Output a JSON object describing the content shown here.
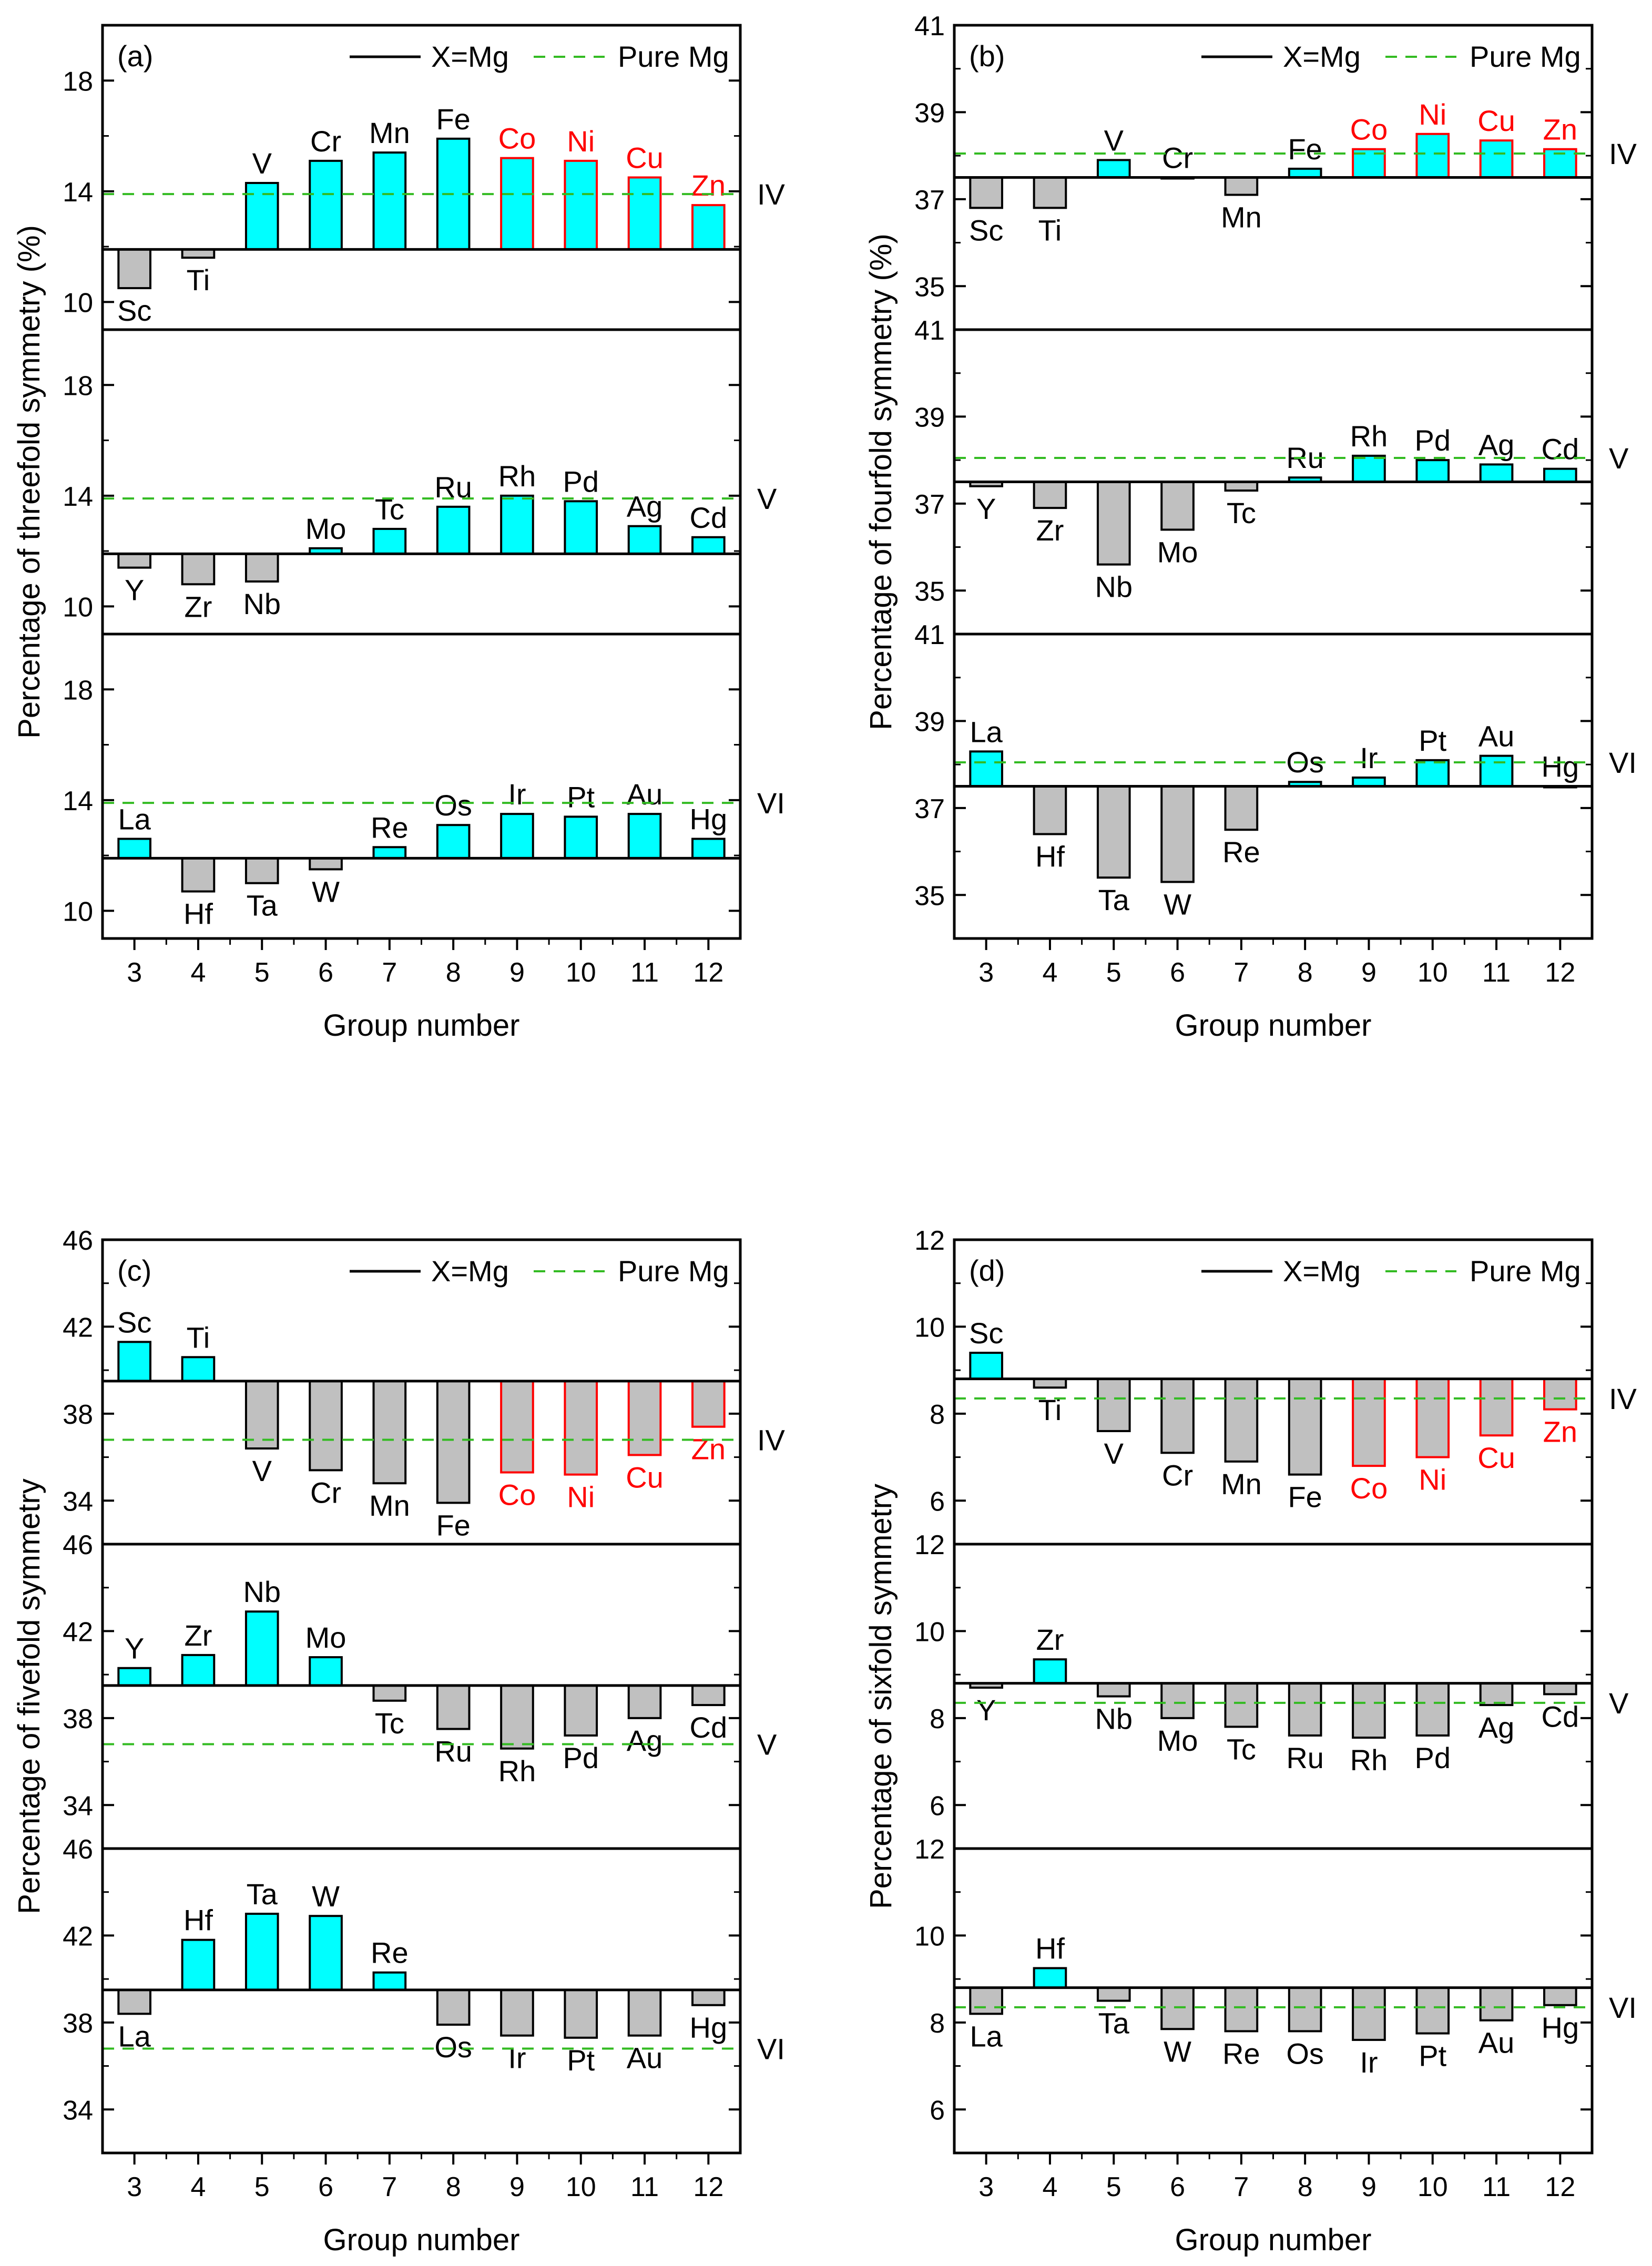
{
  "figure": {
    "xlabel": "Group number",
    "legend": {
      "solid_label": "X=Mg",
      "dashed_label": "Pure Mg",
      "placement": "top-right"
    }
  },
  "colors": {
    "positive_fill": "#00ffff",
    "negative_fill": "#c0c0c0",
    "bar_stroke": "#000000",
    "highlight_stroke": "#ff0000",
    "highlight_text": "#ff0000",
    "dashed_line": "#33bb22",
    "axis": "#000000"
  },
  "chart_data": [
    {
      "panel": "(a)",
      "type": "bar",
      "ylabel": "Percentage of threefold symmetry (%)",
      "ylim": [
        9,
        20
      ],
      "yticks": [
        10,
        14,
        18
      ],
      "x": [
        3,
        4,
        5,
        6,
        7,
        8,
        9,
        10,
        11,
        12
      ],
      "baseline_xmg": 11.9,
      "pure_mg": 13.9,
      "rows": [
        {
          "label": "IV",
          "elements": [
            "Sc",
            "Ti",
            "V",
            "Cr",
            "Mn",
            "Fe",
            "Co",
            "Ni",
            "Cu",
            "Zn"
          ],
          "values": [
            10.5,
            11.6,
            14.3,
            15.1,
            15.4,
            15.9,
            15.2,
            15.1,
            14.5,
            13.5
          ],
          "highlight": [
            false,
            false,
            false,
            false,
            false,
            false,
            true,
            true,
            true,
            true
          ]
        },
        {
          "label": "V",
          "elements": [
            "Y",
            "Zr",
            "Nb",
            "Mo",
            "Tc",
            "Ru",
            "Rh",
            "Pd",
            "Ag",
            "Cd"
          ],
          "values": [
            11.4,
            10.8,
            10.9,
            12.1,
            12.8,
            13.6,
            14.0,
            13.8,
            12.9,
            12.5
          ]
        },
        {
          "label": "VI",
          "elements": [
            "La",
            "Hf",
            "Ta",
            "W",
            "Re",
            "Os",
            "Ir",
            "Pt",
            "Au",
            "Hg"
          ],
          "values": [
            12.6,
            10.7,
            11.0,
            11.5,
            12.3,
            13.1,
            13.5,
            13.4,
            13.5,
            12.6
          ]
        }
      ]
    },
    {
      "panel": "(b)",
      "type": "bar",
      "ylabel": "Percentage of fourfold symmetry (%)",
      "ylim": [
        34,
        41
      ],
      "yticks": [
        35,
        37,
        39,
        41
      ],
      "x": [
        3,
        4,
        5,
        6,
        7,
        8,
        9,
        10,
        11,
        12
      ],
      "baseline_xmg": 37.5,
      "pure_mg": 38.05,
      "rows": [
        {
          "label": "IV",
          "elements": [
            "Sc",
            "Ti",
            "V",
            "Cr",
            "Mn",
            "Fe",
            "Co",
            "Ni",
            "Cu",
            "Zn"
          ],
          "values": [
            36.8,
            36.8,
            37.9,
            37.5,
            37.1,
            37.7,
            38.15,
            38.5,
            38.35,
            38.15
          ],
          "highlight": [
            false,
            false,
            false,
            false,
            false,
            false,
            true,
            true,
            true,
            true
          ]
        },
        {
          "label": "V",
          "elements": [
            "Y",
            "Zr",
            "Nb",
            "Mo",
            "Tc",
            "Ru",
            "Rh",
            "Pd",
            "Ag",
            "Cd"
          ],
          "values": [
            37.4,
            36.9,
            35.6,
            36.4,
            37.3,
            37.6,
            38.1,
            38.0,
            37.9,
            37.8
          ]
        },
        {
          "label": "VI",
          "elements": [
            "La",
            "Hf",
            "Ta",
            "W",
            "Re",
            "Os",
            "Ir",
            "Pt",
            "Au",
            "Hg"
          ],
          "values": [
            38.3,
            36.4,
            35.4,
            35.3,
            36.5,
            37.6,
            37.7,
            38.1,
            38.2,
            37.5
          ]
        }
      ]
    },
    {
      "panel": "(c)",
      "type": "bar",
      "ylabel": "Percentage of fivefold symmetry",
      "ylim": [
        32,
        46
      ],
      "yticks": [
        34,
        38,
        42,
        46
      ],
      "x": [
        3,
        4,
        5,
        6,
        7,
        8,
        9,
        10,
        11,
        12
      ],
      "baseline_xmg": 39.5,
      "pure_mg": 36.8,
      "rows": [
        {
          "label": "IV",
          "elements": [
            "Sc",
            "Ti",
            "V",
            "Cr",
            "Mn",
            "Fe",
            "Co",
            "Ni",
            "Cu",
            "Zn"
          ],
          "values": [
            41.3,
            40.6,
            36.4,
            35.4,
            34.8,
            33.9,
            35.3,
            35.2,
            36.1,
            37.4
          ],
          "highlight": [
            false,
            false,
            false,
            false,
            false,
            false,
            true,
            true,
            true,
            true
          ]
        },
        {
          "label": "V",
          "elements": [
            "Y",
            "Zr",
            "Nb",
            "Mo",
            "Tc",
            "Ru",
            "Rh",
            "Pd",
            "Ag",
            "Cd"
          ],
          "values": [
            40.3,
            40.9,
            42.9,
            40.8,
            38.8,
            37.5,
            36.6,
            37.2,
            38.0,
            38.6
          ]
        },
        {
          "label": "VI",
          "elements": [
            "La",
            "Hf",
            "Ta",
            "W",
            "Re",
            "Os",
            "Ir",
            "Pt",
            "Au",
            "Hg"
          ],
          "values": [
            38.4,
            41.8,
            43.0,
            42.9,
            40.3,
            37.9,
            37.4,
            37.3,
            37.4,
            38.8
          ]
        }
      ]
    },
    {
      "panel": "(d)",
      "type": "bar",
      "ylabel": "Percentage of sixfold symmetry",
      "ylim": [
        5,
        12
      ],
      "yticks": [
        6,
        8,
        10,
        12
      ],
      "x": [
        3,
        4,
        5,
        6,
        7,
        8,
        9,
        10,
        11,
        12
      ],
      "baseline_xmg": 8.8,
      "pure_mg": 8.35,
      "rows": [
        {
          "label": "IV",
          "elements": [
            "Sc",
            "Ti",
            "V",
            "Cr",
            "Mn",
            "Fe",
            "Co",
            "Ni",
            "Cu",
            "Zn"
          ],
          "values": [
            9.4,
            8.6,
            7.6,
            7.1,
            6.9,
            6.6,
            6.8,
            7.0,
            7.5,
            8.1
          ],
          "highlight": [
            false,
            false,
            false,
            false,
            false,
            false,
            true,
            true,
            true,
            true
          ]
        },
        {
          "label": "V",
          "elements": [
            "Y",
            "Zr",
            "Nb",
            "Mo",
            "Tc",
            "Ru",
            "Rh",
            "Pd",
            "Ag",
            "Cd"
          ],
          "values": [
            8.7,
            9.35,
            8.5,
            8.0,
            7.8,
            7.6,
            7.55,
            7.6,
            8.3,
            8.55
          ]
        },
        {
          "label": "VI",
          "elements": [
            "La",
            "Hf",
            "Ta",
            "W",
            "Re",
            "Os",
            "Ir",
            "Pt",
            "Au",
            "Hg"
          ],
          "values": [
            8.2,
            9.25,
            8.5,
            7.85,
            7.8,
            7.8,
            7.6,
            7.75,
            8.05,
            8.4
          ]
        }
      ]
    }
  ]
}
